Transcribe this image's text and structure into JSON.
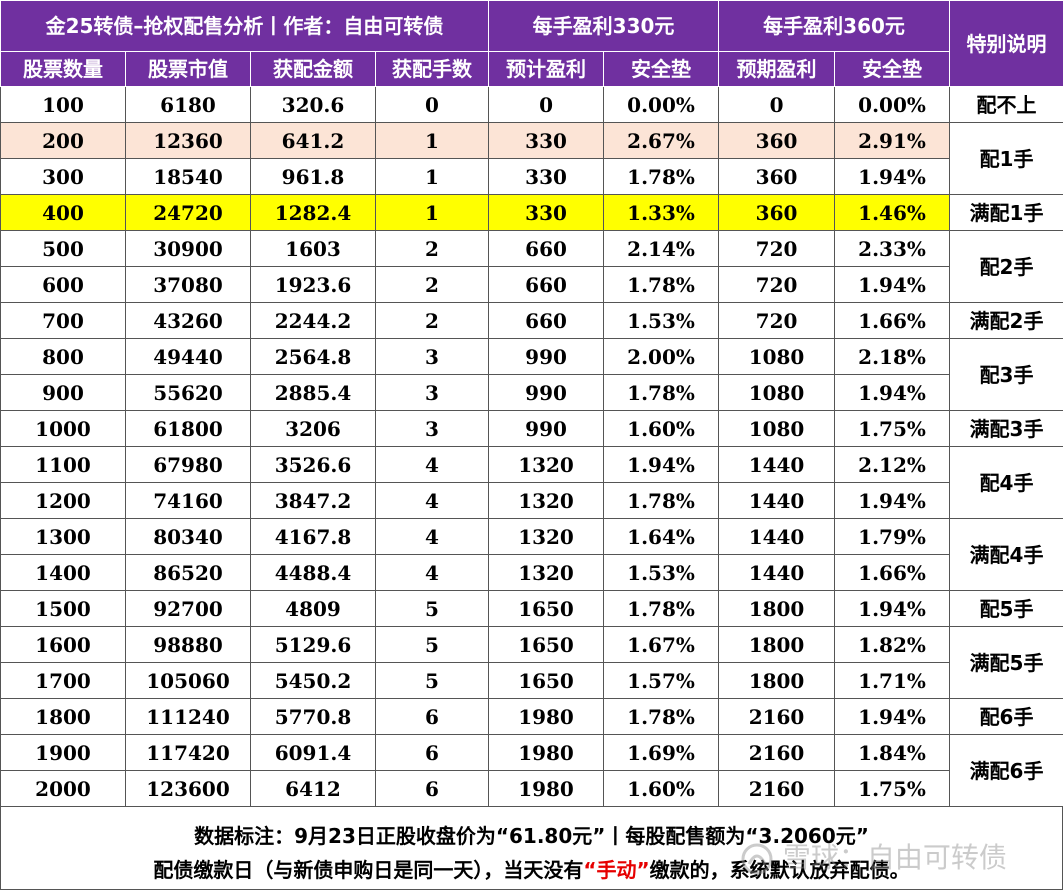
{
  "header": {
    "title": "金25转债–抢权配售分析丨作者：自由可转债",
    "group_330": "每手盈利330元",
    "group_360": "每手盈利360元",
    "special_note": "特别说明",
    "cols": {
      "shares": "股票数量",
      "market_value": "股票市值",
      "allot_amount": "获配金额",
      "allot_lots": "获配手数",
      "profit_330": "预计盈利",
      "safety_330": "安全垫",
      "profit_360": "预期盈利",
      "safety_360": "安全垫"
    }
  },
  "rows": [
    [
      "100",
      "6180",
      "320.6",
      "0",
      "0",
      "0.00%",
      "0",
      "0.00%"
    ],
    [
      "200",
      "12360",
      "641.2",
      "1",
      "330",
      "2.67%",
      "360",
      "2.91%"
    ],
    [
      "300",
      "18540",
      "961.8",
      "1",
      "330",
      "1.78%",
      "360",
      "1.94%"
    ],
    [
      "400",
      "24720",
      "1282.4",
      "1",
      "330",
      "1.33%",
      "360",
      "1.46%"
    ],
    [
      "500",
      "30900",
      "1603",
      "2",
      "660",
      "2.14%",
      "720",
      "2.33%"
    ],
    [
      "600",
      "37080",
      "1923.6",
      "2",
      "660",
      "1.78%",
      "720",
      "1.94%"
    ],
    [
      "700",
      "43260",
      "2244.2",
      "2",
      "660",
      "1.53%",
      "720",
      "1.66%"
    ],
    [
      "800",
      "49440",
      "2564.8",
      "3",
      "990",
      "2.00%",
      "1080",
      "2.18%"
    ],
    [
      "900",
      "55620",
      "2885.4",
      "3",
      "990",
      "1.78%",
      "1080",
      "1.94%"
    ],
    [
      "1000",
      "61800",
      "3206",
      "3",
      "990",
      "1.60%",
      "1080",
      "1.75%"
    ],
    [
      "1100",
      "67980",
      "3526.6",
      "4",
      "1320",
      "1.94%",
      "1440",
      "2.12%"
    ],
    [
      "1200",
      "74160",
      "3847.2",
      "4",
      "1320",
      "1.78%",
      "1440",
      "1.94%"
    ],
    [
      "1300",
      "80340",
      "4167.8",
      "4",
      "1320",
      "1.64%",
      "1440",
      "1.79%"
    ],
    [
      "1400",
      "86520",
      "4488.4",
      "4",
      "1320",
      "1.53%",
      "1440",
      "1.66%"
    ],
    [
      "1500",
      "92700",
      "4809",
      "5",
      "1650",
      "1.78%",
      "1800",
      "1.94%"
    ],
    [
      "1600",
      "98880",
      "5129.6",
      "5",
      "1650",
      "1.67%",
      "1800",
      "1.82%"
    ],
    [
      "1700",
      "105060",
      "5450.2",
      "5",
      "1650",
      "1.57%",
      "1800",
      "1.71%"
    ],
    [
      "1800",
      "111240",
      "5770.8",
      "6",
      "1980",
      "1.78%",
      "2160",
      "1.94%"
    ],
    [
      "1900",
      "117420",
      "6091.4",
      "6",
      "1980",
      "1.69%",
      "2160",
      "1.84%"
    ],
    [
      "2000",
      "123600",
      "6412",
      "6",
      "1980",
      "1.60%",
      "2160",
      "1.75%"
    ]
  ],
  "notes": [
    {
      "text": "配不上",
      "start": 0,
      "span": 1
    },
    {
      "text": "配1手",
      "start": 1,
      "span": 2
    },
    {
      "text": "满配1手",
      "start": 3,
      "span": 1
    },
    {
      "text": "配2手",
      "start": 4,
      "span": 2
    },
    {
      "text": "满配2手",
      "start": 6,
      "span": 1
    },
    {
      "text": "配3手",
      "start": 7,
      "span": 2
    },
    {
      "text": "满配3手",
      "start": 9,
      "span": 1
    },
    {
      "text": "配4手",
      "start": 10,
      "span": 2
    },
    {
      "text": "满配4手",
      "start": 12,
      "span": 2
    },
    {
      "text": "配5手",
      "start": 14,
      "span": 1
    },
    {
      "text": "满配5手",
      "start": 15,
      "span": 2
    },
    {
      "text": "配6手",
      "start": 17,
      "span": 1
    },
    {
      "text": "满配6手",
      "start": 18,
      "span": 2
    }
  ],
  "highlights": {
    "peach_rows": [
      1
    ],
    "yellow_rows": [
      3
    ],
    "peach_color": "#fce4d6",
    "yellow_color": "#ffff00",
    "header_color": "#7030a0",
    "emphasis_color": "#e60000"
  },
  "footer": {
    "line1": "数据标注：9月23日正股收盘价为“61.80元”丨每股配售额为“3.2060元”",
    "line2_before": "配债缴款日（与新债申购日是同一天），当天没有",
    "line2_red": "“手动”",
    "line2_after": "缴款的，系统默认放弃配债。"
  },
  "watermark": {
    "text": "雪球：自由可转债",
    "icon": "snowball-logo"
  }
}
